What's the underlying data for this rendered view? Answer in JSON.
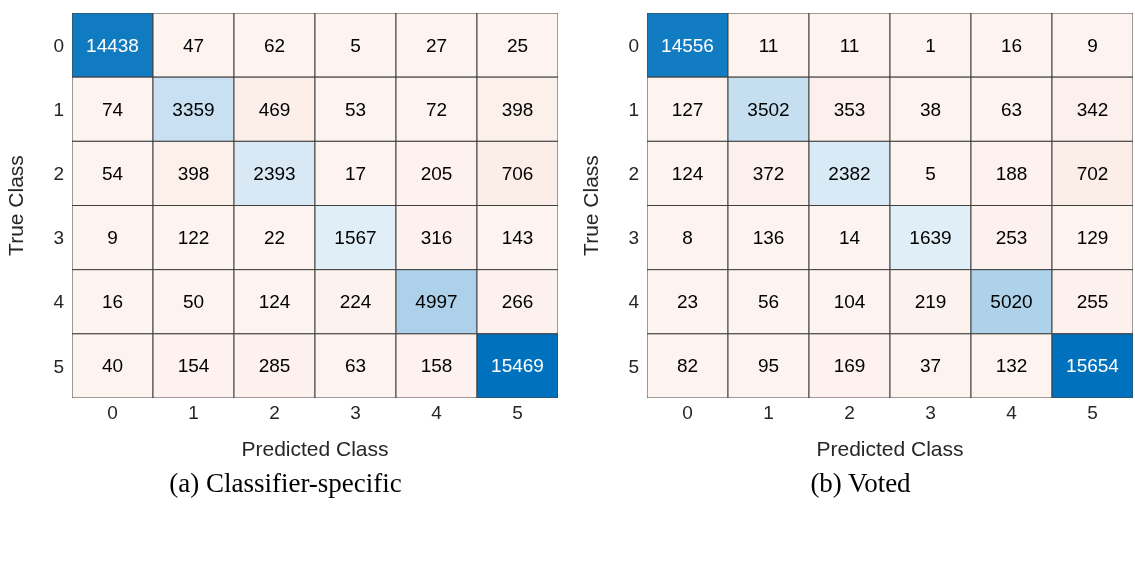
{
  "chart_data": [
    {
      "type": "heatmap",
      "title": "(a) Classifier-specific",
      "xlabel": "Predicted Class",
      "ylabel": "True Class",
      "categories": [
        "0",
        "1",
        "2",
        "3",
        "4",
        "5"
      ],
      "y_categories": [
        "0",
        "1",
        "2",
        "3",
        "4",
        "5"
      ],
      "data_labels": true,
      "cells": [
        [
          14438,
          47,
          62,
          5,
          27,
          25
        ],
        [
          74,
          3359,
          469,
          53,
          72,
          398
        ],
        [
          54,
          398,
          2393,
          17,
          205,
          706
        ],
        [
          9,
          122,
          22,
          1567,
          316,
          143
        ],
        [
          16,
          50,
          124,
          224,
          4997,
          266
        ],
        [
          40,
          154,
          285,
          63,
          158,
          15469
        ]
      ]
    },
    {
      "type": "heatmap",
      "title": "(b) Voted",
      "xlabel": "Predicted Class",
      "ylabel": "True Class",
      "categories": [
        "0",
        "1",
        "2",
        "3",
        "4",
        "5"
      ],
      "y_categories": [
        "0",
        "1",
        "2",
        "3",
        "4",
        "5"
      ],
      "data_labels": true,
      "cells": [
        [
          14556,
          11,
          11,
          1,
          16,
          9
        ],
        [
          127,
          3502,
          353,
          38,
          63,
          342
        ],
        [
          124,
          372,
          2382,
          5,
          188,
          702
        ],
        [
          8,
          136,
          14,
          1639,
          253,
          129
        ],
        [
          23,
          56,
          104,
          219,
          5020,
          255
        ],
        [
          82,
          95,
          169,
          37,
          132,
          15654
        ]
      ]
    }
  ]
}
